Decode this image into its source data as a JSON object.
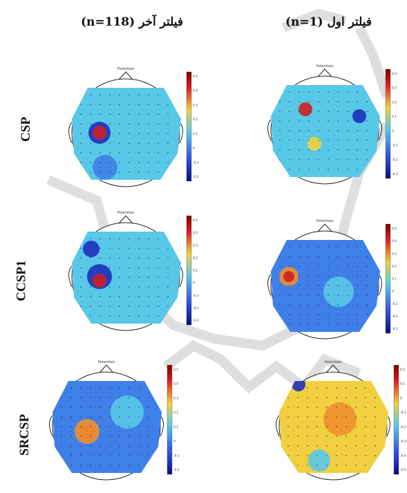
{
  "columns": {
    "right_header": "فیلتر اول (n=1)",
    "left_header": "فیلتر آخر (n=118)"
  },
  "rows": [
    {
      "label": "CSP"
    },
    {
      "label": "CCSP1"
    },
    {
      "label": "SRCSP"
    }
  ],
  "map_title": "Potentials",
  "colorbars": {
    "csp_last": [
      "0.5",
      "0.4",
      "0.3",
      "0.2",
      "0.1",
      "0",
      "-0.1",
      "-0.2"
    ],
    "csp_first": [
      "0.4",
      "0.3",
      "0.2",
      "0.1",
      "0",
      "-0.1",
      "-0.2",
      "-0.3"
    ],
    "ccsp_last": [
      "0.5",
      "0.4",
      "0.3",
      "0.2",
      "0.1",
      "0",
      "-0.1",
      "-0.2",
      "-0.3"
    ],
    "ccsp_first": [
      "0.5",
      "0.4",
      "0.3",
      "0.2",
      "0.1",
      "0",
      "-0.1",
      "-0.2",
      "-0.3"
    ],
    "srcsp_last": [
      "0.5",
      "0.4",
      "0.3",
      "0.2",
      "0.1",
      "0",
      "-0.1",
      "-0.2"
    ],
    "srcsp_first": [
      "0.2",
      "0.1",
      "0",
      "-0.1",
      "-0.2",
      "-0.3",
      "-0.4",
      "-0.5"
    ]
  },
  "colors": {
    "blue_dark": "#1f2fbf",
    "blue": "#3f7fe8",
    "cyan": "#58c8e8",
    "yellow": "#f0d040",
    "orange": "#f09030",
    "red": "#d02020",
    "watermark": "#bdbdbd"
  }
}
